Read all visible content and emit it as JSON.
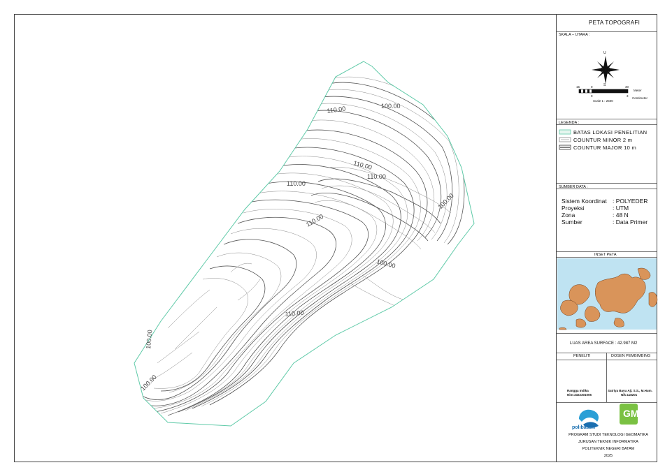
{
  "title": "PETA TOPOGRAFI",
  "scale_section": {
    "label": "SKALA – UTARA :",
    "compass": {
      "north": "U",
      "south": "S"
    },
    "scale_top": {
      "left": "15",
      "zero": "0",
      "right": "30",
      "unit": "Meter"
    },
    "scale_bottom": {
      "zero": "0",
      "right": "3",
      "unit": "Centimeter"
    },
    "scale_text": "Scale 1 : 2500"
  },
  "legend": {
    "label": "LEGENDA :",
    "items": [
      {
        "text": "BATAS LOKASI PENELITIAN",
        "color": "#5fcaa8"
      },
      {
        "text": "COUNTUR MINOR 2 m",
        "color": "#8a8a8a"
      },
      {
        "text": "COUNTUR MAJOR 10 m",
        "color": "#333333"
      }
    ]
  },
  "source": {
    "label": "SUMBER DATA :",
    "rows": [
      {
        "key": "Sistem Koordinat",
        "value": ": POLYEDER"
      },
      {
        "key": "Proyeksi",
        "value": ": UTM"
      },
      {
        "key": "Zona",
        "value": ": 48 N"
      },
      {
        "key": "Sumber",
        "value": ": Data Primer"
      }
    ]
  },
  "inset": {
    "label": "INSET PETA",
    "sea_color": "#bfe3f2",
    "land_color": "#d9945a"
  },
  "area": "LUAS AREA SURFACE : 42.987 M2",
  "people": {
    "researcher_label": "PENELITI",
    "advisor_label": "DOSEN PEMBIMBING",
    "researcher_name": "Rangga Indika",
    "researcher_nim": "Nim:3322301005",
    "advisor_name": "Satriya Bayu Aji, S.S., M.Hum.",
    "advisor_nik": "Nik:118201"
  },
  "logos": {
    "polibatam": "polibatam",
    "gm": "GM"
  },
  "institution": [
    "PROGRAM STUDI TEKNOLOGI GEOMATIKA",
    "JURUSAN TEKNIK INFORMATIKA",
    "POLITEKNIK NEGERI BATAM",
    "2025"
  ],
  "contour_labels": [
    "110.00",
    "110.00",
    "110.00",
    "110.00",
    "110.00",
    "100.00",
    "100.00",
    "100.00",
    "110.00",
    "100.00",
    "100.00"
  ],
  "boundary_color": "#5fcaa8"
}
